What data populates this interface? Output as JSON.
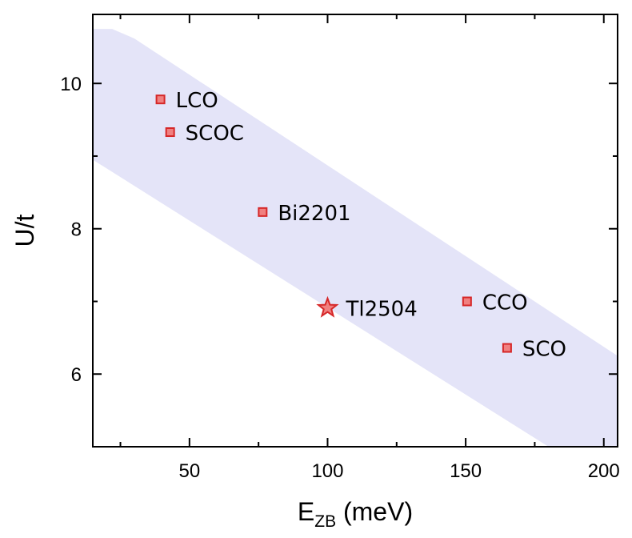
{
  "chart_data": {
    "type": "scatter",
    "title": "",
    "xlabel": {
      "main": "E",
      "sub": "ZB",
      "unit": " (meV)"
    },
    "ylabel": "U/t",
    "xlim": [
      15,
      205
    ],
    "ylim": [
      5,
      10.95
    ],
    "xticks_major": [
      50,
      100,
      150,
      200
    ],
    "xticks_minor": [
      25,
      75,
      125,
      175
    ],
    "xtick_labels": [
      "50",
      "100",
      "150",
      "200"
    ],
    "yticks_major": [
      6,
      8,
      10
    ],
    "yticks_minor": [
      5,
      7,
      9
    ],
    "ytick_labels": [
      "6",
      "8",
      "10"
    ],
    "grid": false,
    "legend": "none",
    "band": {
      "color": "#e4e4f8",
      "upper": [
        [
          15,
          10.75
        ],
        [
          22,
          10.75
        ],
        [
          30,
          10.62
        ],
        [
          205,
          6.25
        ]
      ],
      "lower": [
        [
          15,
          8.95
        ],
        [
          180,
          5.0
        ]
      ]
    },
    "points": [
      {
        "label": "LCO",
        "x": 39.5,
        "y": 9.78,
        "marker": "square"
      },
      {
        "label": "SCOC",
        "x": 43,
        "y": 9.33,
        "marker": "square"
      },
      {
        "label": "Bi2201",
        "x": 76.5,
        "y": 8.23,
        "marker": "square"
      },
      {
        "label": "Tl2504",
        "x": 100,
        "y": 6.91,
        "marker": "star"
      },
      {
        "label": "CCO",
        "x": 150.5,
        "y": 7.0,
        "marker": "square"
      },
      {
        "label": "SCO",
        "x": 165,
        "y": 6.36,
        "marker": "square"
      }
    ],
    "marker_fill": "#f08080",
    "marker_edge": "#d62728"
  }
}
